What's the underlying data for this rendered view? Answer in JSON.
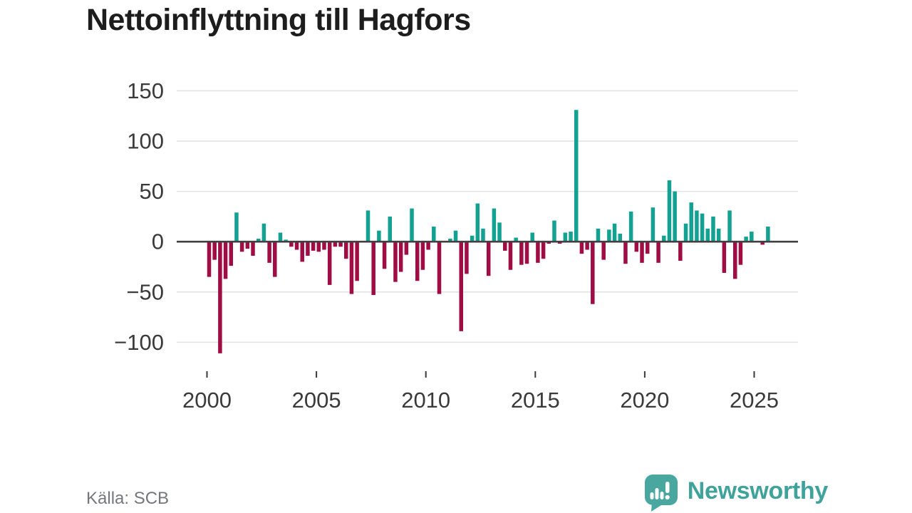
{
  "title": "Nettoinflyttning till Hagfors",
  "source": {
    "label": "Källa: SCB"
  },
  "branding": {
    "name": "Newsworthy"
  },
  "colors": {
    "positive": "#13a192",
    "negative": "#a00d45",
    "grid": "#e3e3e3",
    "zero_line": "#404040",
    "title_text": "#1d1d1d",
    "axis_text": "#3a3a3a",
    "source_text": "#74777e",
    "brand_teal": "#3fa29b",
    "logo_bubble": "#4aa7a0"
  },
  "chart_data": {
    "type": "bar",
    "title": "Nettoinflyttning till Hagfors",
    "x_start": "2000 Q1",
    "frequency": "quarterly",
    "x_tick_years": [
      2000,
      2005,
      2010,
      2015,
      2020,
      2025
    ],
    "y_ticks": [
      150,
      100,
      50,
      0,
      -50,
      -100
    ],
    "ylim": [
      -115,
      150
    ],
    "grid": true,
    "legend": false,
    "series": [
      {
        "name": "Nettoinflyttning",
        "values": [
          -35,
          -18,
          -111,
          -37,
          -24,
          29,
          -10,
          -7,
          -14,
          3,
          18,
          -21,
          -35,
          9,
          2,
          -5,
          -8,
          -20,
          -14,
          -9,
          -10,
          -8,
          -43,
          -5,
          -5,
          -17,
          -52,
          -39,
          0,
          31,
          -53,
          11,
          -27,
          25,
          -40,
          -30,
          -13,
          33,
          -39,
          -28,
          -8,
          15,
          -52,
          0,
          3,
          11,
          -89,
          -32,
          6,
          38,
          13,
          -34,
          33,
          19,
          -9,
          -28,
          4,
          -23,
          -22,
          9,
          -21,
          -17,
          -2,
          21,
          -2,
          9,
          10,
          131,
          -12,
          -8,
          -62,
          13,
          -18,
          12,
          18,
          8,
          -22,
          30,
          -10,
          -21,
          -12,
          34,
          -21,
          6,
          61,
          50,
          -19,
          18,
          39,
          31,
          28,
          13,
          25,
          13,
          -31,
          31,
          -37,
          -23,
          5,
          10,
          0,
          -3,
          15
        ]
      }
    ]
  }
}
